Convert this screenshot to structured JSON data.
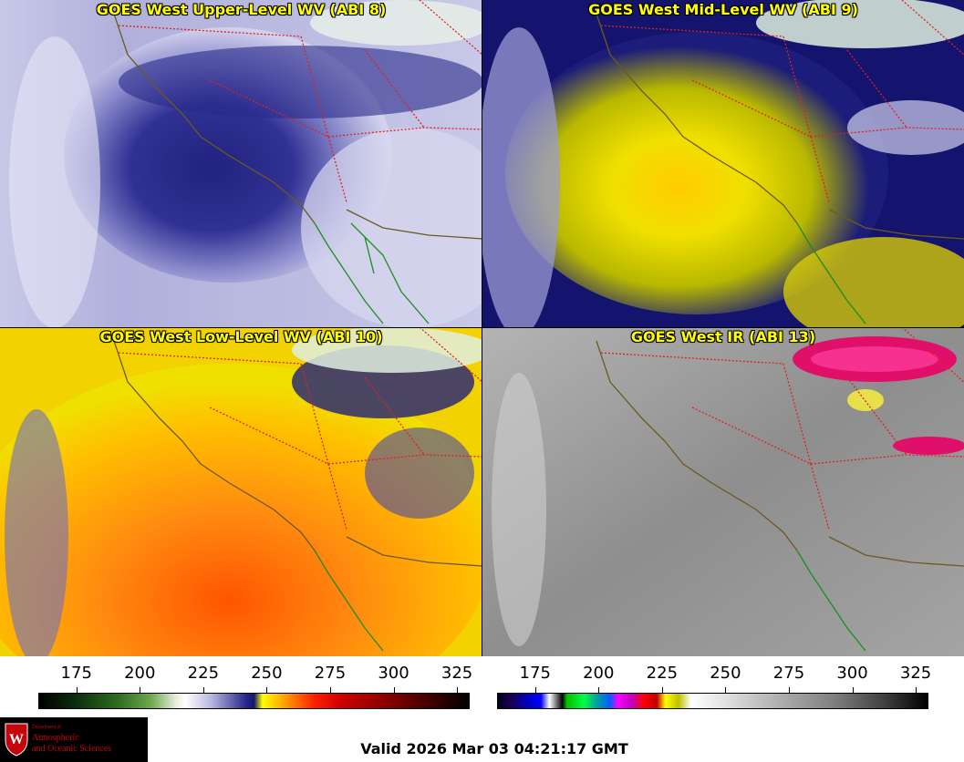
{
  "panels": [
    {
      "title": "GOES West Upper-Level WV (ABI 8)",
      "colormap": "water-vapor"
    },
    {
      "title": "GOES West Mid-Level WV (ABI 9)",
      "colormap": "water-vapor"
    },
    {
      "title": "GOES West Low-Level WV (ABI 10)",
      "colormap": "water-vapor"
    },
    {
      "title": "GOES West IR (ABI 13)",
      "colormap": "infrared"
    }
  ],
  "colorbars": {
    "wv": {
      "ticks": [
        "175",
        "200",
        "225",
        "250",
        "275",
        "300",
        "325"
      ],
      "range": [
        160,
        330
      ]
    },
    "ir": {
      "ticks": [
        "175",
        "200",
        "225",
        "250",
        "275",
        "300",
        "325"
      ],
      "range": [
        160,
        330
      ]
    }
  },
  "map_overlays": {
    "coastline_color": "#6b5a1e",
    "state_border_color": "#e02020",
    "mexico_state_color": "#1a8f1a"
  },
  "logo": {
    "dept": "Department of",
    "line1": "Atmospheric",
    "line2": "and Oceanic Sciences",
    "crest_letter": "W"
  },
  "footer": {
    "valid_text": "Valid 2026 Mar 03 04:21:17 GMT"
  }
}
